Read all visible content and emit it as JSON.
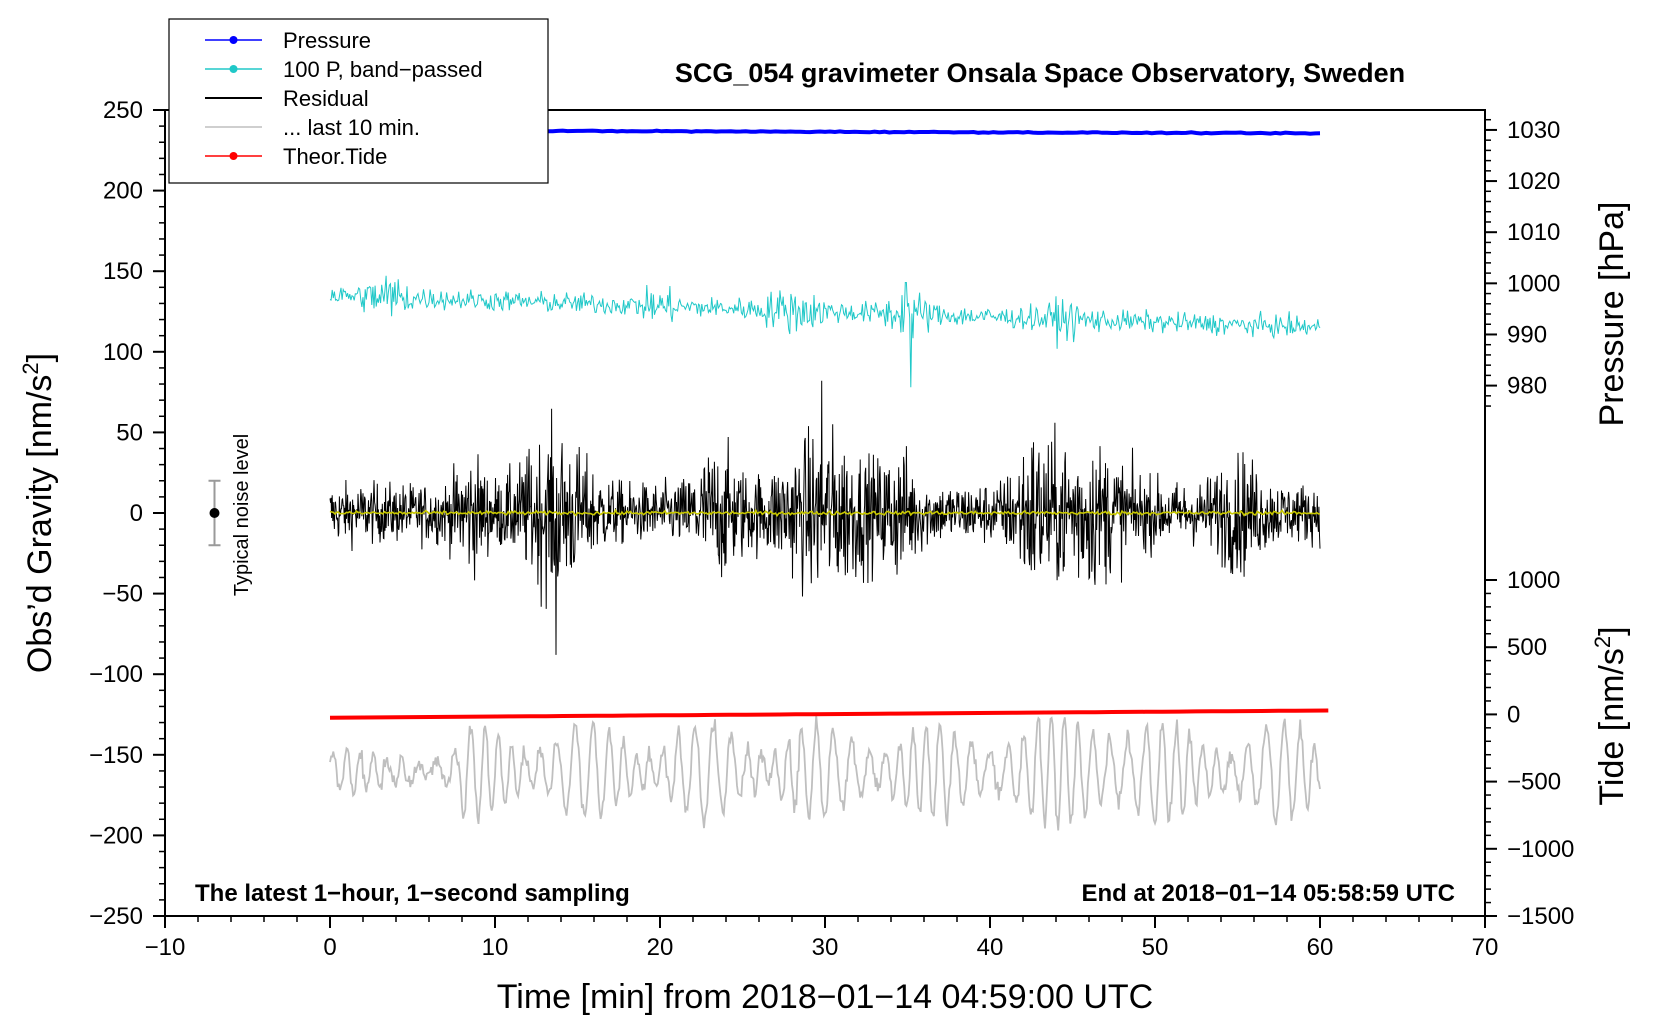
{
  "chart_data": {
    "type": "line",
    "title": "SCG_054 gravimeter Onsala Space Observatory, Sweden",
    "xlabel": "Time [min] from 2018−01−14 04:59:00 UTC",
    "ylabel": "Obs’d Gravity [nm/s",
    "ylabel_sup": "2",
    "ylabel_tail": "]",
    "y2label": "Pressure [hPa]",
    "y3label": "Tide [nm/s",
    "y3label_sup": "2",
    "y3label_tail": "]",
    "xlim": [
      -10,
      70
    ],
    "ylim": [
      -250,
      250
    ],
    "x_ticks": [
      "−10",
      "0",
      "10",
      "20",
      "30",
      "40",
      "50",
      "60",
      "70"
    ],
    "y_ticks": [
      "250",
      "200",
      "150",
      "100",
      "50",
      "0",
      "−50",
      "−100",
      "−150",
      "−200",
      "−250"
    ],
    "pressure_ticks": [
      "1030",
      "1020",
      "1010",
      "1000",
      "990",
      "980"
    ],
    "tide_ticks": [
      "1000",
      "500",
      "0",
      "−500",
      "−1000",
      "−1500"
    ],
    "legend": [
      {
        "label": "Pressure",
        "color": "#0000ff",
        "marker": true
      },
      {
        "label": "100 P, band−passed",
        "color": "#20c8c8",
        "marker": true
      },
      {
        "label": "Residual",
        "color": "#000000",
        "marker": false
      },
      {
        "label": "... last 10 min.",
        "color": "#bfbfbf",
        "marker": false
      },
      {
        "label": "Theor.Tide",
        "color": "#ff0000",
        "marker": true
      }
    ],
    "annotations": {
      "left": "The latest 1−hour, 1−second sampling",
      "right": "End at 2018−01−14 05:58:59 UTC",
      "noise": "Typical noise level"
    },
    "noise_bar": {
      "x": -7,
      "center": 0,
      "half_range": 20
    },
    "series": [
      {
        "name": "Pressure",
        "color": "#0000ff",
        "axis": "gravity",
        "x_range": [
          0,
          60
        ],
        "start": 237.5,
        "end": 235.5
      },
      {
        "name": "100 P, band−passed",
        "color": "#20c8c8",
        "axis": "gravity",
        "x_range": [
          0,
          60
        ],
        "start": 135,
        "end": 115,
        "amplitude": 9
      },
      {
        "name": "Residual",
        "color": "#000000",
        "axis": "gravity",
        "x_range": [
          0,
          60
        ],
        "center": 0,
        "amplitude": 30,
        "peak": 82,
        "trough": -88
      },
      {
        "name": "Residual mean",
        "color": "#c8c800",
        "axis": "gravity",
        "x_range": [
          0,
          60
        ],
        "center": 0
      },
      {
        "name": "... last 10 min.",
        "color": "#bfbfbf",
        "axis": "gravity",
        "x_range": [
          0,
          60
        ],
        "center": -160,
        "amplitude": 30
      },
      {
        "name": "Theor.Tide",
        "color": "#ff0000",
        "axis": "gravity",
        "x_range": [
          0,
          60.5
        ],
        "start": -127,
        "end": -122.5
      }
    ],
    "colors": {
      "pressure": "#0000ff",
      "bandpassed": "#20c8c8",
      "residual": "#000000",
      "residual_mean": "#c8c800",
      "last10": "#bfbfbf",
      "tide": "#ff0000"
    }
  }
}
